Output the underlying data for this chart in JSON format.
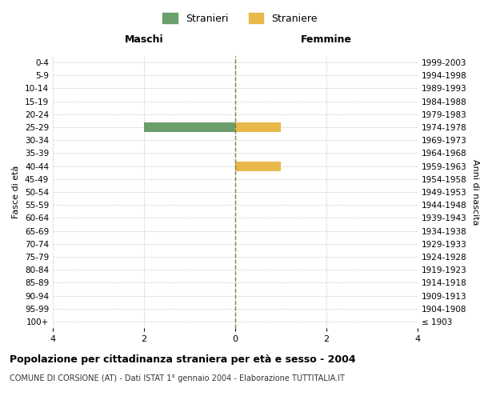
{
  "age_groups": [
    "100+",
    "95-99",
    "90-94",
    "85-89",
    "80-84",
    "75-79",
    "70-74",
    "65-69",
    "60-64",
    "55-59",
    "50-54",
    "45-49",
    "40-44",
    "35-39",
    "30-34",
    "25-29",
    "20-24",
    "15-19",
    "10-14",
    "5-9",
    "0-4"
  ],
  "birth_years": [
    "≤ 1903",
    "1904-1908",
    "1909-1913",
    "1914-1918",
    "1919-1923",
    "1924-1928",
    "1929-1933",
    "1934-1938",
    "1939-1943",
    "1944-1948",
    "1949-1953",
    "1954-1958",
    "1959-1963",
    "1964-1968",
    "1969-1973",
    "1974-1978",
    "1979-1983",
    "1984-1988",
    "1989-1993",
    "1994-1998",
    "1999-2003"
  ],
  "males": [
    0,
    0,
    0,
    0,
    0,
    0,
    0,
    0,
    0,
    0,
    0,
    0,
    0,
    0,
    0,
    2,
    0,
    0,
    0,
    0,
    0
  ],
  "females": [
    0,
    0,
    0,
    0,
    0,
    0,
    0,
    0,
    0,
    0,
    0,
    0,
    1,
    0,
    0,
    1,
    0,
    0,
    0,
    0,
    0
  ],
  "male_color": "#6a9e6a",
  "female_color": "#e8b84b",
  "male_label": "Stranieri",
  "female_label": "Straniere",
  "xlim": 4,
  "xlabel_left": "Maschi",
  "xlabel_right": "Femmine",
  "ylabel_left": "Fasce di età",
  "ylabel_right": "Anni di nascita",
  "title": "Popolazione per cittadinanza straniera per età e sesso - 2004",
  "subtitle": "COMUNE DI CORSIONE (AT) - Dati ISTAT 1° gennaio 2004 - Elaborazione TUTTITALIA.IT",
  "xticks": [
    -4,
    -2,
    0,
    2,
    4
  ],
  "xticklabels": [
    "4",
    "2",
    "0",
    "2",
    "4"
  ],
  "background_color": "#ffffff",
  "grid_color": "#cccccc",
  "center_line_color": "#808040",
  "bar_height": 0.75
}
